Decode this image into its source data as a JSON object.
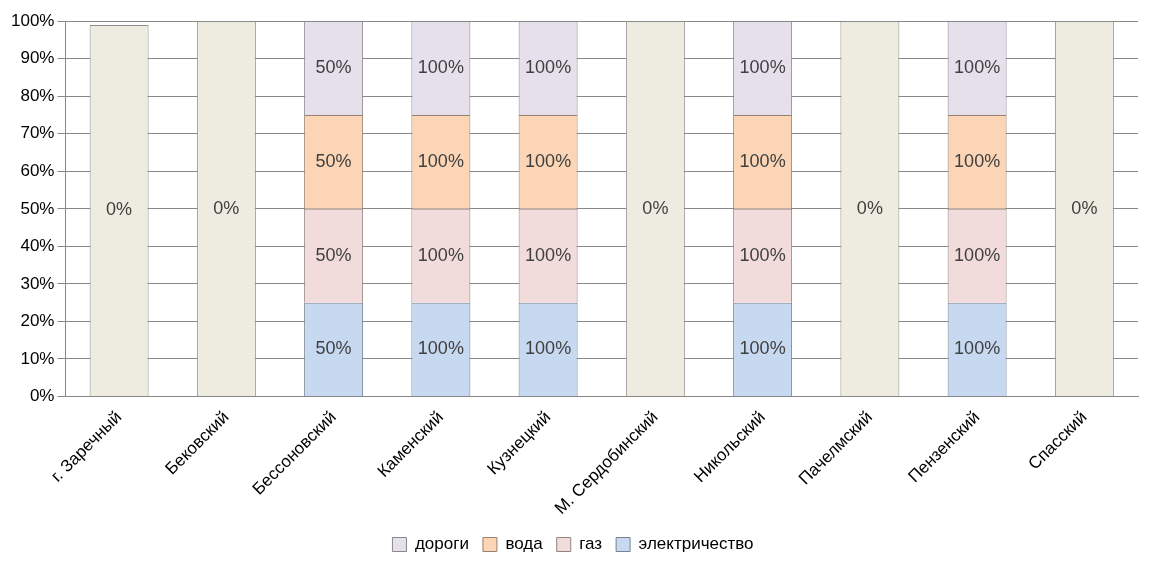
{
  "chart_data": {
    "type": "bar",
    "stacked": true,
    "categories": [
      "г. Заречный",
      "Бековский",
      "Бессоновский",
      "Каменский",
      "Кузнецкий",
      "М. Сердобинский",
      "Никольский",
      "Пачелмский",
      "Пензенский",
      "Спасский"
    ],
    "series": [
      {
        "name": "электричество",
        "color": "#c6d9f1",
        "values": [
          null,
          null,
          25,
          25,
          25,
          null,
          25,
          null,
          25,
          null
        ]
      },
      {
        "name": "газ",
        "color": "#f2dcdb",
        "values": [
          null,
          null,
          25,
          25,
          25,
          null,
          25,
          null,
          25,
          null
        ]
      },
      {
        "name": "вода",
        "color": "#fbd5b5",
        "values": [
          null,
          null,
          25,
          25,
          25,
          null,
          25,
          null,
          25,
          null
        ]
      },
      {
        "name": "дороги",
        "color": "#e5e0ec",
        "values": [
          null,
          null,
          25,
          25,
          25,
          null,
          25,
          null,
          25,
          null
        ]
      },
      {
        "color": "#eeece1",
        "values": [
          99,
          100,
          null,
          null,
          null,
          100,
          null,
          100,
          null,
          100
        ]
      }
    ],
    "annotations": [
      "0%",
      "0%",
      "50%",
      "50%",
      "50%",
      "50%",
      "100%",
      "100%",
      "100%",
      "100%",
      "100%",
      "100%",
      "100%",
      "100%",
      "0%",
      "100%",
      "100%",
      "100%",
      "100%",
      "0%",
      "100%",
      "100%",
      "100%",
      "100%",
      "0%"
    ],
    "ylim": [
      0,
      100
    ],
    "yticks": [
      {
        "value": 0,
        "label": "0%"
      },
      {
        "value": 10,
        "label": "10%"
      },
      {
        "value": 20,
        "label": "20%"
      },
      {
        "value": 30,
        "label": "30%"
      },
      {
        "value": 40,
        "label": "40%"
      },
      {
        "value": 50,
        "label": "50%"
      },
      {
        "value": 60,
        "label": "60%"
      },
      {
        "value": 70,
        "label": "70%"
      },
      {
        "value": 80,
        "label": "80%"
      },
      {
        "value": 90,
        "label": "90%"
      },
      {
        "value": 100,
        "label": "100%"
      }
    ],
    "grid": "y",
    "legend": "bottom"
  }
}
